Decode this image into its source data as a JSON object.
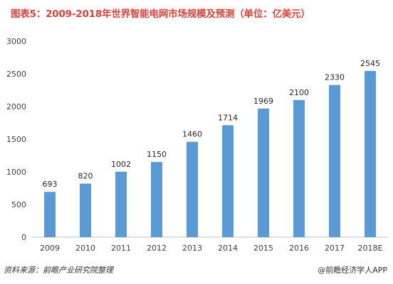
{
  "header": {
    "title": "图表5：2009-2018年世界智能电网市场规模及预测（单位：亿美元）"
  },
  "chart_data": {
    "type": "bar",
    "title": "图表5：2009-2018年世界智能电网市场规模及预测（单位：亿美元）",
    "xlabel": "",
    "ylabel": "",
    "categories": [
      "2009",
      "2010",
      "2011",
      "2012",
      "2013",
      "2014",
      "2015",
      "2016",
      "2017",
      "2018E"
    ],
    "values": [
      693,
      820,
      1002,
      1150,
      1460,
      1714,
      1969,
      2100,
      2330,
      2545
    ],
    "ylim": [
      0,
      3000
    ],
    "yticks": [
      0,
      500,
      1000,
      1500,
      2000,
      2500,
      3000
    ],
    "grid": false,
    "legend": "none",
    "bar_color": "#5b9bd5",
    "axis_color": "#bfbfbf",
    "data_labels": true
  },
  "footer": {
    "source": "资料来源：前瞻产业研究院整理",
    "brand": "@前瞻经济学人APP"
  }
}
